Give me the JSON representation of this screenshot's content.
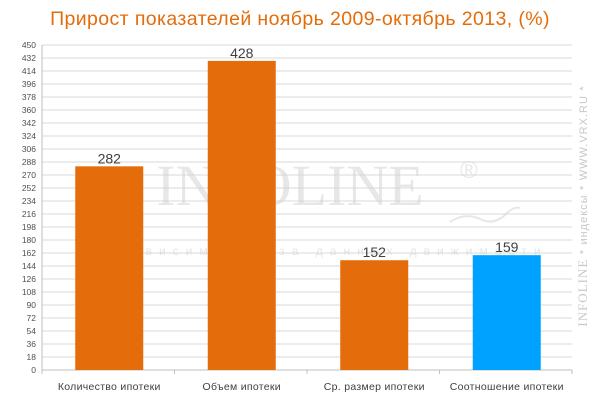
{
  "header": {
    "title": "Прирост показателей ноябрь 2009-октябрь 2013, (%)"
  },
  "watermark": {
    "logo": "INFOLINE",
    "registered": "®",
    "tagline": "независимая база данных движимости"
  },
  "side_text": {
    "brand": "INFOLINE",
    "separator": "*",
    "section": "индексы",
    "site": "WWW.VRX.RU"
  },
  "colors": {
    "title": "#e46c0a",
    "bar_primary": "#e46c0a",
    "bar_highlight": "#00a2ff",
    "grid": "#d9d9d9",
    "text": "#404040"
  },
  "chart_data": {
    "type": "bar",
    "title": "Прирост показателей ноябрь 2009-октябрь 2013, (%)",
    "categories": [
      "Количество ипотеки",
      "Объем ипотеки",
      "Ср. размер ипотеки",
      "Соотношение ипотеки"
    ],
    "values": [
      282,
      428,
      152,
      159
    ],
    "data_labels": [
      "282",
      "428",
      "152",
      "159"
    ],
    "bar_colors": [
      "#e46c0a",
      "#e46c0a",
      "#e46c0a",
      "#00a2ff"
    ],
    "ylim": [
      0,
      450
    ],
    "yticks": [
      0,
      18,
      36,
      54,
      72,
      90,
      108,
      126,
      144,
      162,
      180,
      198,
      216,
      234,
      252,
      270,
      288,
      306,
      324,
      342,
      360,
      378,
      396,
      414,
      432,
      450
    ],
    "grid": true,
    "legend": "none",
    "xlabel": "",
    "ylabel": ""
  }
}
